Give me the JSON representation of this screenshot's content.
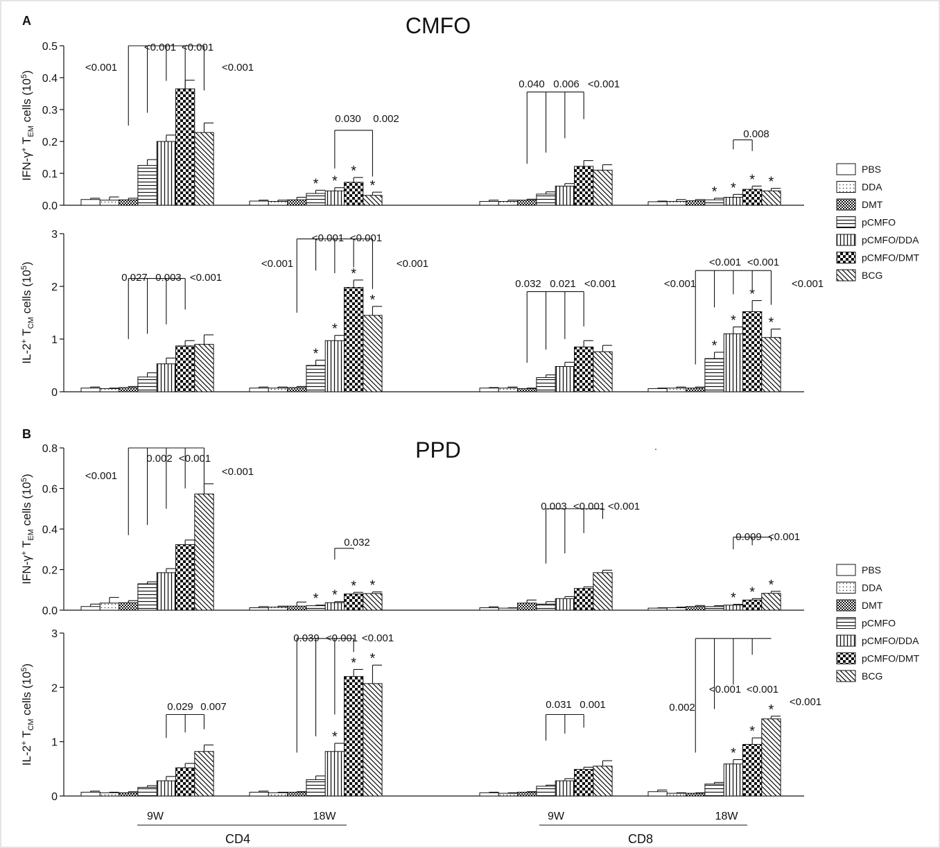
{
  "figure": {
    "panels": [
      "A",
      "B"
    ],
    "group_labels": {
      "cd4": "CD4",
      "cd8": "CD8",
      "w9": "9W",
      "w18": "18W"
    },
    "legend": [
      {
        "label": "PBS",
        "pattern": "empty"
      },
      {
        "label": "DDA",
        "pattern": "dots"
      },
      {
        "label": "DMT",
        "pattern": "fine-check"
      },
      {
        "label": "pCMFO",
        "pattern": "horizontal"
      },
      {
        "label": "pCMFO/DDA",
        "pattern": "vertical"
      },
      {
        "label": "pCMFO/DMT",
        "pattern": "checker"
      },
      {
        "label": "BCG",
        "pattern": "diagonal"
      }
    ]
  },
  "chart_data": [
    {
      "type": "bar",
      "panel": "A",
      "title": "CMFO",
      "ylabel_main": "IFN-γ",
      "ylabel_sup": "+",
      "ylabel_t": " T",
      "ylabel_sub": "EM",
      "ylabel_tail": " cells (10",
      "ylabel_exp": "5",
      "ylabel_close": ")",
      "ylim": [
        0,
        0.5
      ],
      "yticks": [
        "0.0",
        "0.1",
        "0.2",
        "0.3",
        "0.4",
        "0.5"
      ],
      "yticks_val": [
        0,
        0.1,
        0.2,
        0.3,
        0.4,
        0.5
      ],
      "groups": [
        "CD4 9W",
        "CD4 18W",
        "CD8 9W",
        "CD8 18W"
      ],
      "series": [
        "PBS",
        "DDA",
        "DMT",
        "pCMFO",
        "pCMFO/DDA",
        "pCMFO/DMT",
        "BCG"
      ],
      "values": [
        [
          0.018,
          0.016,
          0.017,
          0.125,
          0.2,
          0.365,
          0.228
        ],
        [
          0.013,
          0.012,
          0.017,
          0.037,
          0.045,
          0.072,
          0.031
        ],
        [
          0.012,
          0.012,
          0.016,
          0.035,
          0.06,
          0.122,
          0.11
        ],
        [
          0.011,
          0.012,
          0.014,
          0.017,
          0.025,
          0.05,
          0.045
        ]
      ],
      "errors": [
        [
          0.004,
          0.01,
          0.005,
          0.018,
          0.02,
          0.027,
          0.03
        ],
        [
          0.003,
          0.004,
          0.008,
          0.01,
          0.01,
          0.015,
          0.01
        ],
        [
          0.004,
          0.004,
          0.003,
          0.007,
          0.008,
          0.018,
          0.017
        ],
        [
          0.002,
          0.006,
          0.004,
          0.005,
          0.009,
          0.01,
          0.008
        ]
      ],
      "stars": [
        [],
        [
          3,
          4,
          5,
          6
        ],
        [],
        [
          3,
          4,
          5,
          6
        ]
      ],
      "brackets": [
        {
          "group": 0,
          "ref": 2,
          "targets": [
            3,
            4,
            5,
            6
          ],
          "top": 0.5,
          "foot": [
            0.25,
            0.29,
            0.39,
            0.36
          ],
          "labels": [
            {
              "text": "<0.001",
              "x": 146,
              "y": 97
            },
            {
              "text": "<0.001",
              "x": 231,
              "y": 68
            },
            {
              "text": "<0.001",
              "x": 285,
              "y": 68
            },
            {
              "text": "<0.001",
              "x": 343,
              "y": 97
            }
          ]
        },
        {
          "group": 1,
          "ref": 4,
          "targets": [
            6
          ],
          "top": 0.235,
          "foot": [
            0.115,
            0.09
          ],
          "labels": [
            {
              "text": "0.030",
              "x": 502,
              "y": 171
            },
            {
              "text": "0.002",
              "x": 557,
              "y": 171
            }
          ]
        },
        {
          "group": 2,
          "ref": 2,
          "targets": [
            3,
            4,
            5
          ],
          "top": 0.355,
          "foot": [
            0.13,
            0.165,
            0.21,
            0.27
          ],
          "labels": [
            {
              "text": "0.040",
              "x": 767,
              "y": 121
            },
            {
              "text": "0.006",
              "x": 817,
              "y": 121
            },
            {
              "text": "<0.001",
              "x": 871,
              "y": 121
            }
          ]
        },
        {
          "group": 3,
          "ref": 4,
          "targets": [
            5
          ],
          "top": 0.205,
          "foot": [
            0.175,
            0.17
          ],
          "labels": [
            {
              "text": "0.008",
              "x": 1091,
              "y": 193
            }
          ]
        }
      ]
    },
    {
      "type": "bar",
      "panel": "A",
      "title": "",
      "ylabel_main": "IL-2",
      "ylabel_sup": "+",
      "ylabel_t": " T",
      "ylabel_sub": "CM",
      "ylabel_tail": " cells (10",
      "ylabel_exp": "5",
      "ylabel_close": ")",
      "ylim": [
        0,
        3
      ],
      "yticks": [
        "0",
        "1",
        "2",
        "3"
      ],
      "yticks_val": [
        0,
        1,
        2,
        3
      ],
      "groups": [
        "CD4 9W",
        "CD4 18W",
        "CD8 9W",
        "CD8 18W"
      ],
      "series": [
        "PBS",
        "DDA",
        "DMT",
        "pCMFO",
        "pCMFO/DDA",
        "pCMFO/DMT",
        "BCG"
      ],
      "values": [
        [
          0.07,
          0.06,
          0.08,
          0.28,
          0.53,
          0.87,
          0.9
        ],
        [
          0.07,
          0.07,
          0.08,
          0.5,
          0.97,
          1.98,
          1.45
        ],
        [
          0.07,
          0.07,
          0.06,
          0.27,
          0.48,
          0.85,
          0.76
        ],
        [
          0.06,
          0.07,
          0.07,
          0.63,
          1.1,
          1.52,
          1.03
        ]
      ],
      "errors": [
        [
          0.02,
          0.01,
          0.02,
          0.08,
          0.11,
          0.1,
          0.18
        ],
        [
          0.02,
          0.02,
          0.02,
          0.1,
          0.1,
          0.14,
          0.17
        ],
        [
          0.01,
          0.02,
          0.01,
          0.05,
          0.08,
          0.12,
          0.12
        ],
        [
          0.01,
          0.02,
          0.02,
          0.12,
          0.13,
          0.21,
          0.16
        ]
      ],
      "stars": [
        [],
        [
          3,
          4,
          5,
          6
        ],
        [],
        [
          3,
          4,
          5,
          6
        ]
      ],
      "brackets": [
        {
          "group": 0,
          "ref": 2,
          "targets": [
            3,
            4,
            5
          ],
          "top": 2.15,
          "foot": [
            1.0,
            1.1,
            1.28,
            1.56
          ],
          "labels": [
            {
              "text": "0.027",
              "x": 194,
              "y": 400
            },
            {
              "text": "0.003",
              "x": 243,
              "y": 400
            },
            {
              "text": "<0.001",
              "x": 297,
              "y": 400
            }
          ]
        },
        {
          "group": 1,
          "ref": 2,
          "targets": [
            3,
            4,
            5,
            6
          ],
          "top": 2.9,
          "foot": [
            1.5,
            2.3,
            2.25,
            2.36,
            1.95
          ],
          "labels": [
            {
              "text": "<0.001",
              "x": 400,
              "y": 380
            },
            {
              "text": "<0.001",
              "x": 473,
              "y": 343
            },
            {
              "text": "<0.001",
              "x": 528,
              "y": 343
            },
            {
              "text": "<0.001",
              "x": 595,
              "y": 380
            }
          ]
        },
        {
          "group": 2,
          "ref": 2,
          "targets": [
            3,
            4,
            5
          ],
          "top": 1.9,
          "foot": [
            0.55,
            0.8,
            1.0,
            1.24
          ],
          "labels": [
            {
              "text": "0.032",
              "x": 762,
              "y": 409
            },
            {
              "text": "0.021",
              "x": 812,
              "y": 409
            },
            {
              "text": "<0.001",
              "x": 866,
              "y": 409
            }
          ]
        },
        {
          "group": 3,
          "ref": 2,
          "targets": [
            3,
            4,
            5,
            6
          ],
          "top": 2.3,
          "foot": [
            0.52,
            1.6,
            1.85,
            1.95,
            1.65
          ],
          "labels": [
            {
              "text": "<0.001",
              "x": 981,
              "y": 409
            },
            {
              "text": "<0.001",
              "x": 1046,
              "y": 378
            },
            {
              "text": "<0.001",
              "x": 1101,
              "y": 378
            },
            {
              "text": "<0.001",
              "x": 1165,
              "y": 409
            }
          ]
        }
      ]
    },
    {
      "type": "bar",
      "panel": "B",
      "title": "PPD",
      "ylabel_main": "IFN-γ",
      "ylabel_sup": "+",
      "ylabel_t": " T",
      "ylabel_sub": "EM",
      "ylabel_tail": " cells (10",
      "ylabel_exp": "5",
      "ylabel_close": ")",
      "ylim": [
        0,
        0.8
      ],
      "yticks": [
        "0.0",
        "0.2",
        "0.4",
        "0.6",
        "0.8"
      ],
      "yticks_val": [
        0,
        0.2,
        0.4,
        0.6,
        0.8
      ],
      "groups": [
        "CD4 9W",
        "CD4 18W",
        "CD8 9W",
        "CD8 18W"
      ],
      "series": [
        "PBS",
        "DDA",
        "DMT",
        "pCMFO",
        "pCMFO/DDA",
        "pCMFO/DMT",
        "BCG"
      ],
      "values": [
        [
          0.018,
          0.035,
          0.037,
          0.13,
          0.185,
          0.323,
          0.573
        ],
        [
          0.012,
          0.015,
          0.02,
          0.022,
          0.037,
          0.08,
          0.082
        ],
        [
          0.012,
          0.01,
          0.035,
          0.03,
          0.057,
          0.107,
          0.185
        ],
        [
          0.01,
          0.012,
          0.018,
          0.018,
          0.025,
          0.05,
          0.083
        ]
      ],
      "errors": [
        [
          0.012,
          0.028,
          0.01,
          0.01,
          0.02,
          0.023,
          0.05
        ],
        [
          0.006,
          0.005,
          0.02,
          0.003,
          0.005,
          0.008,
          0.008
        ],
        [
          0.005,
          0.002,
          0.015,
          0.012,
          0.01,
          0.008,
          0.012
        ],
        [
          0.002,
          0.003,
          0.005,
          0.004,
          0.004,
          0.007,
          0.01
        ]
      ],
      "stars": [
        [],
        [
          3,
          4,
          5,
          6
        ],
        [],
        [
          4,
          5,
          6
        ]
      ],
      "brackets": [
        {
          "group": 0,
          "ref": 2,
          "targets": [
            3,
            4,
            5,
            6
          ],
          "top": 0.8,
          "foot": [
            0.37,
            0.42,
            0.5,
            0.6
          ],
          "labels": [
            {
              "text": "<0.001",
              "x": 146,
              "y": 686
            },
            {
              "text": "0.002",
              "x": 230,
              "y": 661
            },
            {
              "text": "<0.001",
              "x": 281,
              "y": 661
            },
            {
              "text": "<0.001",
              "x": 343,
              "y": 680
            }
          ]
        },
        {
          "group": 1,
          "ref": 4,
          "targets": [
            5
          ],
          "top": 0.305,
          "foot": [
            0.25,
            0.3
          ],
          "labels": [
            {
              "text": "0.032",
              "x": 515,
              "y": 782
            }
          ]
        },
        {
          "group": 2,
          "ref": 3,
          "targets": [
            4,
            5,
            6
          ],
          "top": 0.5,
          "foot": [
            0.23,
            0.28,
            0.38,
            0.45
          ],
          "labels": [
            {
              "text": "0.003",
              "x": 799,
              "y": 730
            },
            {
              "text": "<0.001",
              "x": 850,
              "y": 730
            },
            {
              "text": "<0.001",
              "x": 900,
              "y": 730
            }
          ]
        },
        {
          "group": 3,
          "ref": 4,
          "targets": [
            5,
            6
          ],
          "top": 0.36,
          "foot": [
            0.3,
            0.32,
            0.34
          ],
          "labels": [
            {
              "text": "0.009",
              "x": 1080,
              "y": 774
            },
            {
              "text": "<0.001",
              "x": 1131,
              "y": 774
            }
          ]
        }
      ]
    },
    {
      "type": "bar",
      "panel": "B",
      "title": "",
      "ylabel_main": "IL-2",
      "ylabel_sup": "+",
      "ylabel_t": " T",
      "ylabel_sub": "CM",
      "ylabel_tail": " cells (10",
      "ylabel_exp": "5",
      "ylabel_close": ")",
      "ylim": [
        0,
        3
      ],
      "yticks": [
        "0",
        "1",
        "2",
        "3"
      ],
      "yticks_val": [
        0,
        1,
        2,
        3
      ],
      "groups": [
        "CD4 9W",
        "CD4 18W",
        "CD8 9W",
        "CD8 18W"
      ],
      "series": [
        "PBS",
        "DDA",
        "DMT",
        "pCMFO",
        "pCMFO/DDA",
        "pCMFO/DMT",
        "BCG"
      ],
      "values": [
        [
          0.07,
          0.06,
          0.06,
          0.16,
          0.28,
          0.52,
          0.82
        ],
        [
          0.07,
          0.06,
          0.07,
          0.3,
          0.82,
          2.2,
          2.07
        ],
        [
          0.06,
          0.05,
          0.07,
          0.18,
          0.28,
          0.49,
          0.55
        ],
        [
          0.08,
          0.05,
          0.05,
          0.22,
          0.59,
          0.95,
          1.42
        ]
      ],
      "errors": [
        [
          0.02,
          0.01,
          0.02,
          0.03,
          0.08,
          0.08,
          0.12
        ],
        [
          0.02,
          0.01,
          0.01,
          0.07,
          0.15,
          0.13,
          0.34
        ],
        [
          0.01,
          0.01,
          0.01,
          0.02,
          0.04,
          0.04,
          0.1
        ],
        [
          0.03,
          0.01,
          0.01,
          0.03,
          0.08,
          0.12,
          0.05
        ]
      ],
      "stars": [
        [],
        [
          4,
          5,
          6
        ],
        [],
        [
          4,
          5,
          6
        ]
      ],
      "brackets": [
        {
          "group": 0,
          "ref": 4,
          "targets": [
            5,
            6
          ],
          "top": 1.5,
          "foot": [
            1.07,
            1.17,
            1.23
          ],
          "labels": [
            {
              "text": "0.029",
              "x": 260,
              "y": 1019
            },
            {
              "text": "0.007",
              "x": 308,
              "y": 1019
            }
          ]
        },
        {
          "group": 1,
          "ref": 2,
          "targets": [
            3,
            4,
            5
          ],
          "top": 2.9,
          "foot": [
            0.8,
            1.1,
            1.5,
            2.65
          ],
          "labels": [
            {
              "text": "0.039",
              "x": 442,
              "y": 920
            },
            {
              "text": "<0.001",
              "x": 493,
              "y": 920
            },
            {
              "text": "<0.001",
              "x": 545,
              "y": 920
            }
          ]
        },
        {
          "group": 2,
          "ref": 3,
          "targets": [
            4,
            5
          ],
          "top": 1.5,
          "foot": [
            1.02,
            1.15,
            1.26
          ],
          "labels": [
            {
              "text": "0.031",
              "x": 806,
              "y": 1016
            },
            {
              "text": "0.001",
              "x": 855,
              "y": 1016
            }
          ]
        },
        {
          "group": 3,
          "ref": 2,
          "targets": [
            3,
            4,
            5,
            6
          ],
          "top": 2.9,
          "foot": [
            0.8,
            1.6,
            2.05,
            2.6,
            2.9
          ],
          "labels": [
            {
              "text": "0.002",
              "x": 984,
              "y": 1020
            },
            {
              "text": "<0.001",
              "x": 1046,
              "y": 994
            },
            {
              "text": "<0.001",
              "x": 1100,
              "y": 994
            },
            {
              "text": "<0.001",
              "x": 1162,
              "y": 1012
            }
          ]
        }
      ]
    }
  ]
}
